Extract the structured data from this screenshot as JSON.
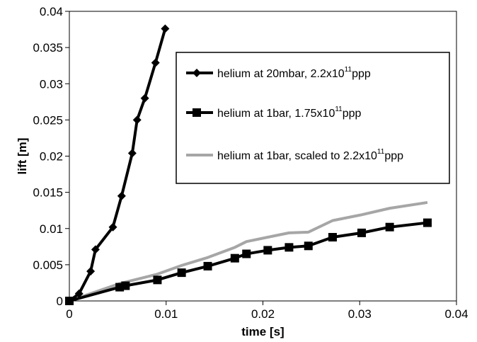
{
  "chart_data": {
    "type": "line",
    "xlabel": "time [s]",
    "ylabel": "lift [m]",
    "xlim": [
      0,
      0.04
    ],
    "ylim": [
      0,
      0.04
    ],
    "x_ticks": [
      0,
      0.01,
      0.02,
      0.03,
      0.04
    ],
    "x_tick_labels": [
      "0",
      "0.01",
      "0.02",
      "0.03",
      "0.04"
    ],
    "y_ticks": [
      0,
      0.005,
      0.01,
      0.015,
      0.02,
      0.025,
      0.03,
      0.035,
      0.04
    ],
    "y_tick_labels": [
      "0",
      "0.005",
      "0.01",
      "0.015",
      "0.02",
      "0.025",
      "0.03",
      "0.035",
      "0.04"
    ],
    "grid": false,
    "legend_position": "top-right",
    "series": [
      {
        "name_parts": [
          "helium at 20mbar, 2.2x10",
          "11",
          "ppp"
        ],
        "marker": "diamond",
        "color": "#000000",
        "x": [
          0,
          0.001,
          0.0022,
          0.0027,
          0.0045,
          0.0054,
          0.0065,
          0.007,
          0.0078,
          0.0089,
          0.0099
        ],
        "y": [
          0,
          0.001,
          0.0041,
          0.0071,
          0.0102,
          0.0145,
          0.0204,
          0.025,
          0.028,
          0.0329,
          0.0376
        ]
      },
      {
        "name_parts": [
          "helium at 1bar, 1.75x10",
          "11",
          "ppp"
        ],
        "marker": "square",
        "color": "#000000",
        "x": [
          0,
          0.0052,
          0.0058,
          0.0091,
          0.0116,
          0.0143,
          0.0171,
          0.0183,
          0.0205,
          0.0227,
          0.0247,
          0.0272,
          0.0302,
          0.0331,
          0.037
        ],
        "y": [
          0,
          0.0019,
          0.0021,
          0.0029,
          0.0039,
          0.0048,
          0.0059,
          0.0065,
          0.007,
          0.0074,
          0.0076,
          0.0088,
          0.0094,
          0.0102,
          0.0108
        ]
      },
      {
        "name_parts": [
          "helium at 1bar, scaled to 2.2x10",
          "11",
          "ppp"
        ],
        "marker": "none",
        "color": "#a6a6a6",
        "x": [
          0,
          0.0052,
          0.0058,
          0.0091,
          0.0116,
          0.0143,
          0.0171,
          0.0183,
          0.0205,
          0.0227,
          0.0247,
          0.0272,
          0.0302,
          0.0331,
          0.037
        ],
        "y": [
          0,
          0.0024,
          0.0026,
          0.0037,
          0.0049,
          0.006,
          0.0074,
          0.0082,
          0.0088,
          0.0094,
          0.0095,
          0.0111,
          0.0119,
          0.0128,
          0.0136
        ]
      }
    ]
  }
}
